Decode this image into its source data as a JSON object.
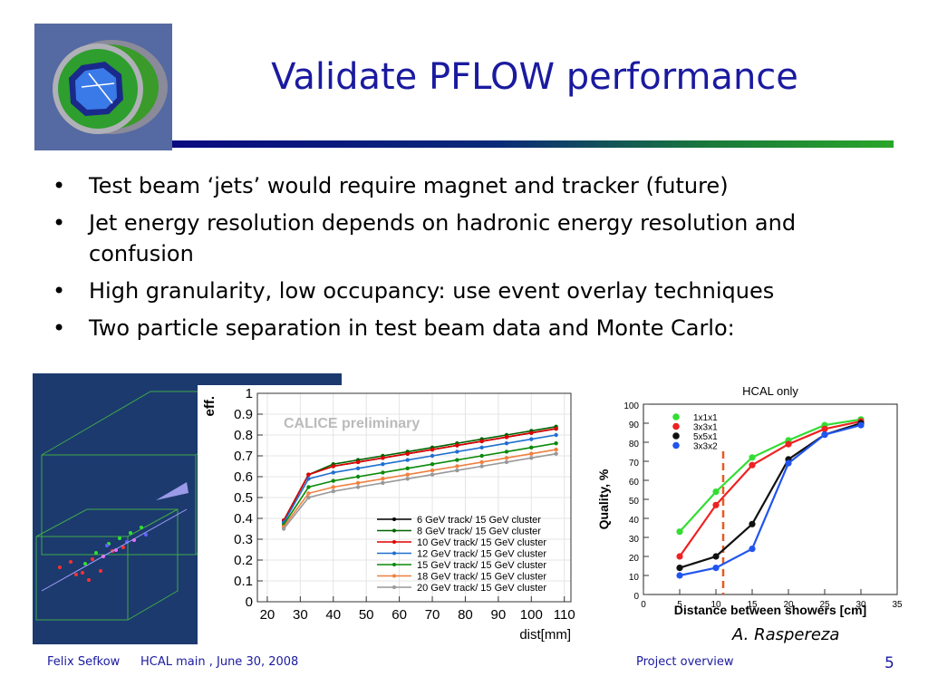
{
  "slide": {
    "title": "Validate PFLOW performance",
    "bullets": [
      "Test beam ‘jets’ would require magnet and tracker (future)",
      "Jet energy resolution depends on hadronic energy resolution and confusion",
      "High granularity, low occupancy: use event overlay techniques",
      "Two particle separation in test beam data and Monte Carlo:"
    ],
    "bullet_symbol": "•",
    "credit": "A. Raspereza",
    "footer": {
      "author": "Felix Sefkow",
      "meeting": "HCAL main , June 30, 2008",
      "section": "Project overview",
      "page": "5"
    }
  },
  "colors": {
    "title": "#1a1aa0",
    "event_display_bg": "#1c3a6e"
  },
  "chart_data": [
    {
      "type": "line",
      "overlay_text": "CALICE preliminary",
      "ylabel": "eff.",
      "xlabel": "dist[mm]",
      "xlim": [
        17,
        112
      ],
      "ylim": [
        0,
        1
      ],
      "xticks": [
        "20",
        "30",
        "40",
        "50",
        "60",
        "70",
        "80",
        "90",
        "100",
        "110"
      ],
      "yticks": [
        "0",
        "0.1",
        "0.2",
        "0.3",
        "0.4",
        "0.5",
        "0.6",
        "0.7",
        "0.8",
        "0.9",
        "1"
      ],
      "x": [
        25,
        32.5,
        40,
        47.5,
        55,
        62.5,
        70,
        77.5,
        85,
        92.5,
        100,
        107.5
      ],
      "series": [
        {
          "name": "6 GeV track/ 15 GeV cluster",
          "color": "#000000",
          "values": [
            0.39,
            0.61,
            0.65,
            0.67,
            0.69,
            0.71,
            0.73,
            0.75,
            0.77,
            0.79,
            0.81,
            0.83
          ]
        },
        {
          "name": "8 GeV track/ 15 GeV cluster",
          "color": "#006400",
          "values": [
            0.39,
            0.61,
            0.66,
            0.68,
            0.7,
            0.72,
            0.74,
            0.76,
            0.78,
            0.8,
            0.82,
            0.84
          ]
        },
        {
          "name": "10 GeV track/ 15 GeV cluster",
          "color": "#e00000",
          "values": [
            0.39,
            0.61,
            0.65,
            0.67,
            0.69,
            0.71,
            0.73,
            0.75,
            0.77,
            0.79,
            0.81,
            0.83
          ]
        },
        {
          "name": "12 GeV track/ 15 GeV cluster",
          "color": "#1f6fd0",
          "values": [
            0.38,
            0.59,
            0.62,
            0.64,
            0.66,
            0.68,
            0.7,
            0.72,
            0.74,
            0.76,
            0.78,
            0.8
          ]
        },
        {
          "name": "15 GeV track/ 15 GeV cluster",
          "color": "#0a8a0a",
          "values": [
            0.37,
            0.55,
            0.58,
            0.6,
            0.62,
            0.64,
            0.66,
            0.68,
            0.7,
            0.72,
            0.74,
            0.76
          ]
        },
        {
          "name": "18 GeV track/ 15 GeV cluster",
          "color": "#f08040",
          "values": [
            0.36,
            0.52,
            0.55,
            0.57,
            0.59,
            0.61,
            0.63,
            0.65,
            0.67,
            0.69,
            0.71,
            0.73
          ]
        },
        {
          "name": "20 GeV track/ 15 GeV cluster",
          "color": "#999999",
          "values": [
            0.35,
            0.5,
            0.53,
            0.55,
            0.57,
            0.59,
            0.61,
            0.63,
            0.65,
            0.67,
            0.69,
            0.71
          ]
        }
      ]
    },
    {
      "type": "line",
      "title": "HCAL only",
      "ylabel": "Quality, %",
      "xlabel": "Distance between showers [cm]",
      "xlim": [
        0,
        35
      ],
      "ylim": [
        0,
        100
      ],
      "xticks": [
        "0",
        "5",
        "10",
        "15",
        "20",
        "25",
        "30",
        "35"
      ],
      "yticks": [
        "0",
        "10",
        "20",
        "30",
        "40",
        "50",
        "60",
        "70",
        "80",
        "90",
        "100"
      ],
      "marker_line_x": 11,
      "x": [
        5,
        10,
        15,
        20,
        25,
        30
      ],
      "series": [
        {
          "name": "1x1x1",
          "color": "#33dd33",
          "values": [
            33,
            54,
            72,
            81,
            89,
            92
          ]
        },
        {
          "name": "3x3x1",
          "color": "#ee2222",
          "values": [
            20,
            47,
            68,
            79,
            87,
            91
          ]
        },
        {
          "name": "5x5x1",
          "color": "#111111",
          "values": [
            14,
            20,
            37,
            71,
            84,
            90
          ]
        },
        {
          "name": "3x3x2",
          "color": "#2255ee",
          "values": [
            10,
            14,
            24,
            69,
            84,
            89
          ]
        }
      ]
    }
  ]
}
